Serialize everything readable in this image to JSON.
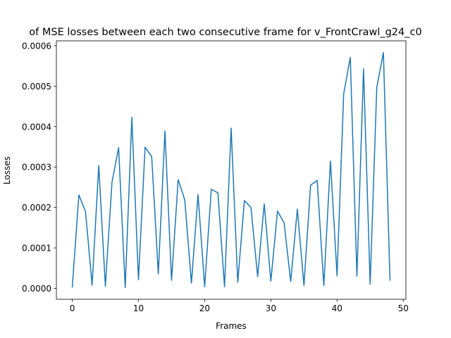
{
  "chart_data": {
    "type": "line",
    "title": "of MSE losses between each two consecutive frame for v_FrontCrawl_g24_c0",
    "xlabel": "Frames",
    "ylabel": "Losses",
    "xlim": [
      -2.4,
      50.4
    ],
    "ylim": [
      -2.7e-05,
      0.000612
    ],
    "xticks": [
      0,
      10,
      20,
      30,
      40,
      50
    ],
    "yticks": [
      0.0,
      0.0001,
      0.0002,
      0.0003,
      0.0004,
      0.0005,
      0.0006
    ],
    "xtick_labels": [
      "0",
      "10",
      "20",
      "30",
      "40",
      "50"
    ],
    "ytick_labels": [
      "0.0000",
      "0.0001",
      "0.0002",
      "0.0003",
      "0.0004",
      "0.0005",
      "0.0006"
    ],
    "grid": false,
    "line_color": "#1f77b4",
    "series": [
      {
        "x": [
          0,
          1,
          2,
          3,
          4,
          5,
          6,
          7,
          8,
          9,
          10,
          11,
          12,
          13,
          14,
          15,
          16,
          17,
          18,
          19,
          20,
          21,
          22,
          23,
          24,
          25,
          26,
          27,
          28,
          29,
          30,
          31,
          32,
          33,
          34,
          35,
          36,
          37,
          38,
          39,
          40,
          41,
          42,
          43,
          44,
          45,
          46,
          47,
          48
        ],
        "values": [
          2e-06,
          0.000231,
          0.00019,
          8e-06,
          0.000304,
          5e-06,
          0.000262,
          0.000348,
          2e-06,
          0.000423,
          2.1e-05,
          0.000349,
          0.000326,
          3.6e-05,
          0.000389,
          2e-05,
          0.000269,
          0.000218,
          1.3e-05,
          0.000232,
          4e-06,
          0.000245,
          0.000236,
          4e-06,
          0.000396,
          1.5e-05,
          0.000217,
          0.0002,
          2.9e-05,
          0.000209,
          1.8e-05,
          0.000191,
          0.000162,
          1.7e-05,
          0.000196,
          7e-06,
          0.000255,
          0.000267,
          7e-06,
          0.000315,
          3.1e-05,
          0.000481,
          0.000571,
          3e-05,
          0.000543,
          1e-05,
          0.000497,
          0.000583,
          1.9e-05
        ]
      }
    ]
  }
}
